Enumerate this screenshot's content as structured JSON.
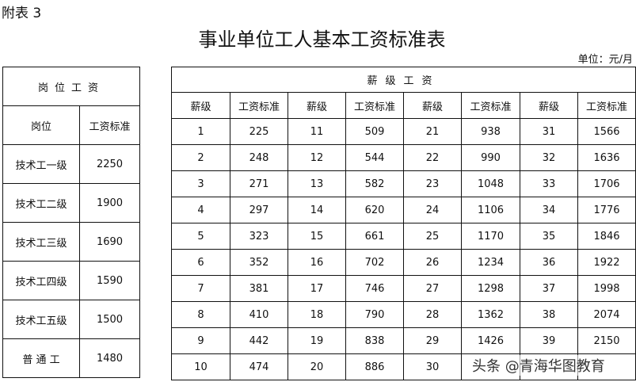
{
  "appendix_label": "附表 3",
  "title": "事业单位工人基本工资标准表",
  "unit": "单位：元/月",
  "post_table": {
    "title": "岗位工资",
    "headers": [
      "岗位",
      "工资标准"
    ],
    "rows": [
      [
        "技术工一级",
        "2250"
      ],
      [
        "技术工二级",
        "1900"
      ],
      [
        "技术工三级",
        "1690"
      ],
      [
        "技术工四级",
        "1590"
      ],
      [
        "技术工五级",
        "1500"
      ],
      [
        "普 通 工",
        "1480"
      ]
    ]
  },
  "grade_table": {
    "title": "薪级工资",
    "headers": [
      "薪级",
      "工资标准",
      "薪级",
      "工资标准",
      "薪级",
      "工资标准",
      "薪级",
      "工资标准"
    ],
    "rows": [
      [
        "1",
        "225",
        "11",
        "509",
        "21",
        "938",
        "31",
        "1566"
      ],
      [
        "2",
        "248",
        "12",
        "544",
        "22",
        "990",
        "32",
        "1636"
      ],
      [
        "3",
        "271",
        "13",
        "582",
        "23",
        "1048",
        "33",
        "1706"
      ],
      [
        "4",
        "297",
        "14",
        "620",
        "24",
        "1106",
        "34",
        "1776"
      ],
      [
        "5",
        "323",
        "15",
        "661",
        "25",
        "1170",
        "35",
        "1846"
      ],
      [
        "6",
        "352",
        "16",
        "702",
        "26",
        "1234",
        "36",
        "1922"
      ],
      [
        "7",
        "381",
        "17",
        "746",
        "27",
        "1298",
        "37",
        "1998"
      ],
      [
        "8",
        "410",
        "18",
        "790",
        "28",
        "1362",
        "38",
        "2074"
      ],
      [
        "9",
        "442",
        "19",
        "838",
        "29",
        "1426",
        "39",
        "2150"
      ],
      [
        "10",
        "474",
        "20",
        "886",
        "30",
        "",
        "",
        ""
      ]
    ]
  },
  "watermark": "头条 @青海华图教育"
}
